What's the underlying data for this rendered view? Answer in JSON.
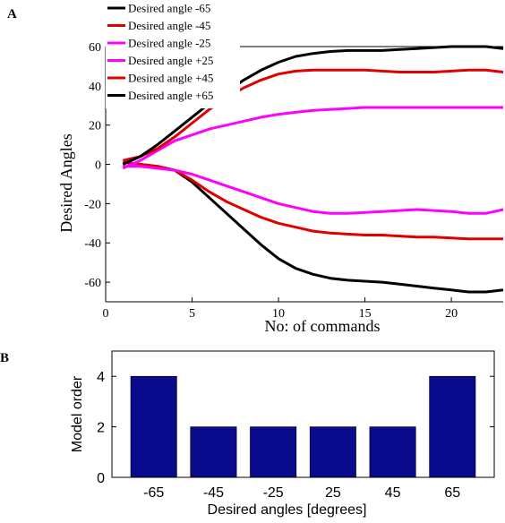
{
  "panels": {
    "a_label": "A",
    "b_label": "B"
  },
  "chart_data": [
    {
      "type": "line",
      "title": "",
      "xlabel": "No: of commands",
      "ylabel": "Desired Angles",
      "xlim": [
        0,
        23
      ],
      "ylim": [
        -70,
        60
      ],
      "xticks": [
        0,
        5,
        10,
        15,
        20
      ],
      "yticks": [
        -60,
        -40,
        -20,
        0,
        20,
        40,
        60
      ],
      "grid": false,
      "legend_position": "top-left",
      "series": [
        {
          "name": "Desired angle -65",
          "color": "#000000",
          "x": [
            1,
            2,
            3,
            4,
            5,
            6,
            7,
            8,
            9,
            10,
            11,
            12,
            13,
            14,
            15,
            16,
            17,
            18,
            19,
            20,
            21,
            22,
            23
          ],
          "y": [
            1,
            0,
            -1,
            -3,
            -9,
            -17,
            -25,
            -33,
            -41,
            -48,
            -53,
            -56,
            -58,
            -59,
            -59.5,
            -60,
            -61,
            -62,
            -63,
            -64,
            -65,
            -65,
            -64
          ]
        },
        {
          "name": "Desired angle -45",
          "color": "#e00000",
          "x": [
            1,
            2,
            3,
            4,
            5,
            6,
            7,
            8,
            9,
            10,
            11,
            12,
            13,
            14,
            15,
            16,
            17,
            18,
            19,
            20,
            21,
            22,
            23
          ],
          "y": [
            1,
            0,
            -1,
            -3,
            -8,
            -14,
            -19,
            -23,
            -27,
            -30,
            -32,
            -34,
            -35,
            -35.5,
            -36,
            -36,
            -36.5,
            -37,
            -37,
            -37.5,
            -38,
            -38,
            -38
          ]
        },
        {
          "name": "Desired angle -25",
          "color": "#ff00ff",
          "x": [
            1,
            2,
            3,
            4,
            5,
            6,
            7,
            8,
            9,
            10,
            11,
            12,
            13,
            14,
            15,
            16,
            17,
            18,
            19,
            20,
            21,
            22,
            23
          ],
          "y": [
            -1,
            -1,
            -2,
            -3,
            -5,
            -8,
            -11,
            -14,
            -17,
            -20,
            -22,
            -24,
            -25,
            -25,
            -24.5,
            -24,
            -23.5,
            -23,
            -23.5,
            -24,
            -25,
            -25,
            -23
          ]
        },
        {
          "name": "Desired angle +25",
          "color": "#ff00ff",
          "x": [
            1,
            2,
            3,
            4,
            5,
            6,
            7,
            8,
            9,
            10,
            11,
            12,
            13,
            14,
            15,
            16,
            17,
            18,
            19,
            20,
            21,
            22,
            23
          ],
          "y": [
            -2,
            2,
            7,
            12,
            15,
            18,
            20,
            22,
            24,
            25.5,
            26.5,
            27.5,
            28,
            28.5,
            29,
            29,
            29,
            29,
            29,
            29,
            29,
            29,
            29
          ]
        },
        {
          "name": "Desired angle +45",
          "color": "#e00000",
          "x": [
            1,
            2,
            3,
            4,
            5,
            6,
            7,
            8,
            9,
            10,
            11,
            12,
            13,
            14,
            15,
            16,
            17,
            18,
            19,
            20,
            21,
            22,
            23
          ],
          "y": [
            2,
            4,
            8,
            14,
            21,
            28,
            34,
            39,
            43,
            46,
            47.5,
            48,
            48,
            48,
            48,
            47.5,
            47,
            47,
            47,
            47.5,
            48,
            48,
            47
          ]
        },
        {
          "name": "Desired angle +65",
          "color": "#000000",
          "x": [
            1,
            2,
            3,
            4,
            5,
            6,
            7,
            8,
            9,
            10,
            11,
            12,
            13,
            14,
            15,
            16,
            17,
            18,
            19,
            20,
            21,
            22,
            23
          ],
          "y": [
            0,
            4,
            10,
            17,
            24,
            31,
            37,
            43,
            48,
            52,
            55,
            56.5,
            57.5,
            58,
            58,
            58,
            58.5,
            59,
            59.5,
            60,
            60,
            60,
            59
          ]
        }
      ]
    },
    {
      "type": "bar",
      "title": "",
      "xlabel": "Desired angles [degrees]",
      "ylabel": "Model order",
      "categories": [
        "-65",
        "-45",
        "-25",
        "25",
        "45",
        "65"
      ],
      "values": [
        4,
        2,
        2,
        2,
        2,
        4
      ],
      "ylim": [
        0,
        5
      ],
      "yticks": [
        0,
        2,
        4
      ],
      "grid": false,
      "bar_color": "#0a0a8c"
    }
  ]
}
